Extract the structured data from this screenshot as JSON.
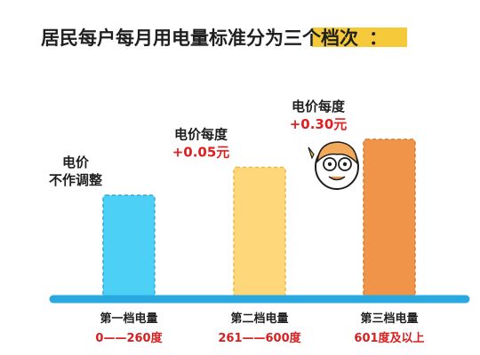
{
  "title": {
    "prefix": "居民每户每月用电量标准分为",
    "highlight": "三个档次",
    "suffix": "："
  },
  "colors": {
    "baseline": "#2aa9e0",
    "highlight": "#f5c93a",
    "price_text": "#e02020"
  },
  "chart_data": {
    "type": "bar",
    "categories": [
      "第一档电量",
      "第二档电量",
      "第三档电量"
    ],
    "ranges": [
      "0——260度",
      "261——600度",
      "601度及以上"
    ],
    "values": [
      1,
      2,
      3
    ],
    "bar_colors": [
      "#4dd0f5",
      "#fdd77a",
      "#f0944a"
    ],
    "bar_borders": [
      "#2aaee0",
      "#f0b840",
      "#e07a2e"
    ],
    "annotations": [
      {
        "lines": [
          "电价",
          "不作调整"
        ],
        "price": ""
      },
      {
        "lines": [
          "电价每度"
        ],
        "price": "+0.05元"
      },
      {
        "lines": [
          "电价每度"
        ],
        "price": "+0.30元"
      }
    ]
  },
  "mascot": {
    "icon": "cartoon-face-icon"
  }
}
